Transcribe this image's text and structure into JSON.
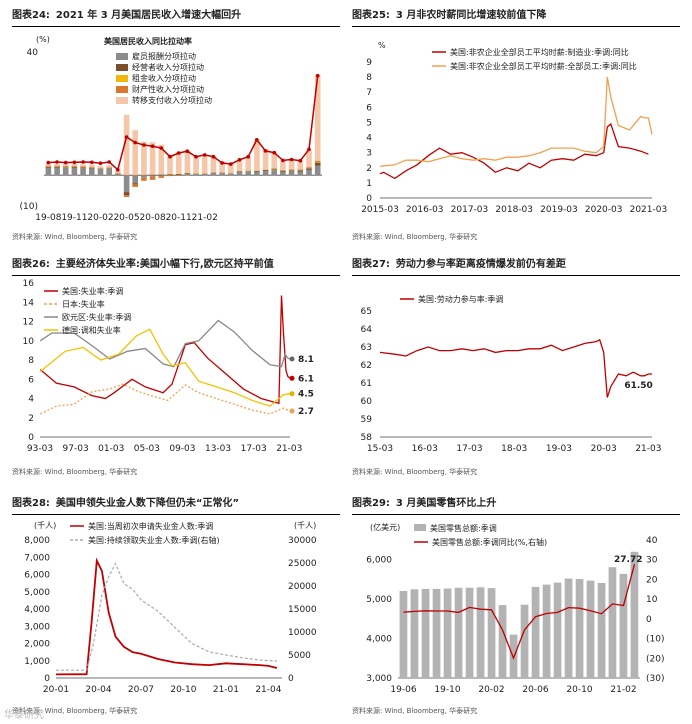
{
  "figures": {
    "f24": {
      "num": "图表24:",
      "title": "2021 年 3 月美国居民收入增速大幅回升",
      "source": "资料来源: Wind, Bloomberg, 华泰研究"
    },
    "f25": {
      "num": "图表25:",
      "title": "3 月非农时薪同比增速较前值下降",
      "source": "资料来源: Wind, Bloomberg, 华泰研究"
    },
    "f26": {
      "num": "图表26:",
      "title": "主要经济体失业率:美国小幅下行,欧元区持平前值",
      "source": "资料来源: Wind, Bloomberg, 华泰研究"
    },
    "f27": {
      "num": "图表27:",
      "title": "劳动力参与率距离疫情爆发前仍有差距",
      "source": "资料来源: Wind, Bloomberg, 华泰研究"
    },
    "f28": {
      "num": "图表28:",
      "title": "美国申领失业金人数下降但仍未“正常化”",
      "source": "资料来源: Wind, Bloomberg, 华泰研究"
    },
    "f29": {
      "num": "图表29:",
      "title": "3 月美国零售环比上升",
      "source": "资料来源: Wind, Bloomberg, 华泰研究"
    }
  },
  "watermark": "华泰研究",
  "chart_data": [
    {
      "id": "f24",
      "type": "bar",
      "title": "美国居民收入同比拉动率",
      "ylabel": "(%)",
      "ylim": [
        -10,
        40
      ],
      "yticks": [
        "40",
        "(10)"
      ],
      "xticks": [
        "19-08",
        "19-11",
        "20-02",
        "20-05",
        "20-08",
        "20-11",
        "21-02"
      ],
      "n": 32,
      "legend": [
        "雇员报酬分项拉动",
        "经营者收入分项拉动",
        "租金收入分项拉动",
        "财产性收入分项拉动",
        "转移支付收入分项拉动"
      ],
      "colors": [
        "#8c8c8c",
        "#7b4f2a",
        "#f2b90c",
        "#d9782d",
        "#f5c6a8"
      ],
      "series": [
        {
          "name": "雇员报酬分项拉动",
          "values": [
            2.5,
            2.5,
            2.4,
            2.5,
            2.3,
            2.2,
            2.0,
            2.2,
            0.6,
            -5.5,
            -2.6,
            -0.8,
            -0.5,
            -0.3,
            0.0,
            0.2,
            0.5,
            0.4,
            0.4,
            0.7,
            0.6,
            0.5,
            1.0,
            1.2,
            1.2,
            1.4,
            1.6,
            1.2,
            1.3,
            1.2,
            1.7,
            3.1
          ]
        },
        {
          "name": "经营者收入分项拉动",
          "values": [
            0.2,
            0.2,
            0.2,
            0.2,
            0.2,
            0.2,
            0.1,
            0.1,
            -0.1,
            -1.0,
            -0.4,
            0.0,
            0.1,
            0.2,
            0.3,
            0.2,
            0.2,
            0.1,
            0.1,
            0.1,
            0.2,
            0.1,
            0.2,
            0.1,
            0.2,
            0.3,
            0.3,
            0.2,
            0.3,
            0.4,
            0.5,
            1.0
          ]
        },
        {
          "name": "租金收入分项拉动",
          "values": [
            0.1,
            0.1,
            0.1,
            0.1,
            0.1,
            0.1,
            0.1,
            0.1,
            0.1,
            0.1,
            0.1,
            0.1,
            0.1,
            0.1,
            0.1,
            0.1,
            0.1,
            0.1,
            0.1,
            0.1,
            0.1,
            0.1,
            0.1,
            0.1,
            0.1,
            0.1,
            0.1,
            0.1,
            0.1,
            0.1,
            0.1,
            0.2
          ]
        },
        {
          "name": "财产性收入分项拉动",
          "values": [
            0.3,
            0.3,
            0.3,
            0.3,
            0.3,
            0.2,
            0.2,
            0.2,
            0.1,
            -0.6,
            -0.8,
            -1.0,
            -1.0,
            -0.6,
            -0.3,
            -0.2,
            -0.1,
            0.0,
            0.0,
            0.1,
            0.1,
            0.1,
            0.1,
            0.1,
            0.1,
            0.1,
            0.2,
            0.2,
            0.2,
            0.2,
            0.3,
            0.4
          ]
        },
        {
          "name": "转移支付收入分项拉动",
          "values": [
            0.6,
            0.6,
            0.6,
            0.6,
            0.6,
            0.7,
            0.6,
            0.6,
            0.8,
            19.5,
            14.5,
            10.8,
            10.5,
            9.6,
            5.9,
            7.0,
            7.3,
            5.5,
            6.0,
            5.4,
            3.3,
            2.9,
            3.6,
            4.5,
            10.1,
            6.5,
            5.5,
            3.1,
            3.2,
            2.8,
            5.6,
            27.8
          ]
        }
      ],
      "total": {
        "name": "同比拉动率合计",
        "values": [
          4.1,
          4.3,
          4.1,
          4.2,
          4.3,
          4.2,
          3.9,
          4.3,
          1.8,
          12.4,
          10.6,
          9.8,
          9.4,
          8.8,
          6.0,
          7.2,
          7.8,
          6.0,
          6.6,
          6.0,
          4.0,
          3.6,
          5.0,
          6.0,
          11.5,
          7.9,
          7.3,
          4.8,
          5.1,
          4.7,
          8.4,
          32.3
        ]
      }
    },
    {
      "id": "f25",
      "type": "line",
      "ylim": [
        0,
        9
      ],
      "ylabel": "%",
      "yticks": [
        "0",
        "1",
        "2",
        "3",
        "4",
        "5",
        "6",
        "7",
        "8",
        "9"
      ],
      "xticks": [
        "2015-03",
        "2016-03",
        "2017-03",
        "2018-03",
        "2019-03",
        "2020-03",
        "2021-03"
      ],
      "x_range": [
        2015.17,
        2021.25
      ],
      "series": [
        {
          "name": "美国:非农企业全部员工平均时薪:制造业:季调:同比",
          "color": "#c00000",
          "x": [
            2015.17,
            2015.25,
            2015.5,
            2015.75,
            2016.0,
            2016.25,
            2016.5,
            2016.75,
            2017.0,
            2017.25,
            2017.5,
            2017.75,
            2018.0,
            2018.25,
            2018.5,
            2018.75,
            2019.0,
            2019.25,
            2019.5,
            2019.75,
            2020.0,
            2020.17,
            2020.25,
            2020.33,
            2020.5,
            2020.75,
            2021.0,
            2021.17
          ],
          "values": [
            1.6,
            1.7,
            1.3,
            1.8,
            2.2,
            2.8,
            3.3,
            2.9,
            3.0,
            2.7,
            2.3,
            1.7,
            2.0,
            1.8,
            2.3,
            2.0,
            2.5,
            2.6,
            2.5,
            2.9,
            2.8,
            3.0,
            4.7,
            4.9,
            3.4,
            3.3,
            3.1,
            2.9
          ]
        },
        {
          "name": "美国:非农企业全部员工平均时薪:全部员工:季调:同比",
          "color": "#f0a050",
          "x": [
            2015.17,
            2015.5,
            2015.75,
            2016.0,
            2016.25,
            2016.5,
            2016.75,
            2017.0,
            2017.25,
            2017.5,
            2017.75,
            2018.0,
            2018.25,
            2018.5,
            2018.75,
            2019.0,
            2019.25,
            2019.5,
            2019.75,
            2020.0,
            2020.17,
            2020.25,
            2020.33,
            2020.5,
            2020.75,
            2021.0,
            2021.08,
            2021.17,
            2021.25
          ],
          "values": [
            2.1,
            2.2,
            2.5,
            2.5,
            2.4,
            2.6,
            2.8,
            2.6,
            2.5,
            2.6,
            2.5,
            2.7,
            2.7,
            2.8,
            3.0,
            3.3,
            3.3,
            3.3,
            3.1,
            3.0,
            3.4,
            8.0,
            6.7,
            4.8,
            4.5,
            5.4,
            5.3,
            5.3,
            4.2
          ]
        }
      ]
    },
    {
      "id": "f26",
      "type": "line",
      "ylim": [
        0,
        16
      ],
      "yticks": [
        "0",
        "2",
        "4",
        "6",
        "8",
        "10",
        "12",
        "14",
        "16"
      ],
      "xticks": [
        "93-03",
        "97-03",
        "01-03",
        "05-03",
        "09-03",
        "13-03",
        "17-03",
        "21-03"
      ],
      "x_range": [
        1993.17,
        2021.25
      ],
      "end_labels": [
        "8.1",
        "6.1",
        "4.5",
        "2.7"
      ],
      "series": [
        {
          "name": "美国:失业率:季调",
          "color": "#c00000",
          "x": [
            1993.2,
            1995,
            1997,
            1999,
            2000.5,
            2001.5,
            2003.5,
            2005,
            2007,
            2008,
            2009.5,
            2010.5,
            2012,
            2014,
            2016,
            2018,
            2019.5,
            2020.0,
            2020.3,
            2020.5,
            2020.8,
            2021.0,
            2021.25
          ],
          "values": [
            7.0,
            5.6,
            5.2,
            4.3,
            4.0,
            4.6,
            6.0,
            5.2,
            4.6,
            5.5,
            9.6,
            9.8,
            8.2,
            6.6,
            5.0,
            4.0,
            3.6,
            3.5,
            14.7,
            11.1,
            6.9,
            6.3,
            6.1
          ]
        },
        {
          "name": "日本:失业率",
          "color": "#f0a050",
          "dashed": true,
          "x": [
            1993.2,
            1995,
            1997,
            1999,
            2001,
            2002.5,
            2004,
            2006,
            2007.5,
            2009.5,
            2011,
            2013,
            2015,
            2017,
            2019,
            2020.5,
            2021.25
          ],
          "values": [
            2.4,
            3.2,
            3.4,
            4.7,
            5.0,
            5.5,
            4.8,
            4.2,
            3.8,
            5.4,
            4.6,
            4.0,
            3.4,
            2.8,
            2.4,
            3.0,
            2.7
          ]
        },
        {
          "name": "欧元区:失业率:季调",
          "color": "#888888",
          "x": [
            1993.2,
            1994.5,
            1997,
            1999,
            2001,
            2003,
            2005,
            2007,
            2008.2,
            2009.5,
            2011,
            2013.2,
            2015,
            2017,
            2019,
            2020.3,
            2020.7,
            2021.0,
            2021.25
          ],
          "values": [
            10.0,
            10.8,
            10.8,
            9.5,
            8.1,
            8.9,
            9.2,
            7.6,
            7.3,
            9.7,
            10.0,
            12.1,
            10.9,
            9.0,
            7.5,
            7.3,
            8.6,
            8.2,
            8.1
          ]
        },
        {
          "name": "德国:调和失业率",
          "color": "#f2c200",
          "x": [
            1993.2,
            1996,
            1998,
            2000,
            2002,
            2004,
            2005.5,
            2007,
            2008,
            2009.5,
            2011,
            2013,
            2015,
            2017,
            2019,
            2020.5,
            2021.25
          ],
          "values": [
            6.8,
            8.9,
            9.3,
            8.0,
            8.6,
            10.5,
            11.2,
            8.6,
            7.4,
            7.7,
            5.8,
            5.2,
            4.6,
            3.8,
            3.2,
            4.4,
            4.5
          ]
        }
      ],
      "end_label_colors": [
        "#666666",
        "#c00000",
        "#e0b000",
        "#f0a050"
      ]
    },
    {
      "id": "f27",
      "type": "line",
      "ylim": [
        58,
        65
      ],
      "yticks": [
        "58",
        "59",
        "60",
        "61",
        "62",
        "63",
        "64",
        "65"
      ],
      "xticks": [
        "15-03",
        "16-03",
        "17-03",
        "18-03",
        "19-03",
        "20-03",
        "21-03"
      ],
      "x_range": [
        2015.17,
        2021.25
      ],
      "end_labels": [
        "61.50"
      ],
      "series": [
        {
          "name": "美国:劳动力参与率:季调",
          "color": "#c00000",
          "x": [
            2015.17,
            2015.5,
            2015.75,
            2016.0,
            2016.25,
            2016.5,
            2016.75,
            2017.0,
            2017.25,
            2017.5,
            2017.75,
            2018.0,
            2018.25,
            2018.5,
            2018.75,
            2019.0,
            2019.25,
            2019.5,
            2019.75,
            2020.0,
            2020.08,
            2020.17,
            2020.25,
            2020.33,
            2020.5,
            2020.67,
            2020.83,
            2021.0,
            2021.08,
            2021.17,
            2021.25
          ],
          "values": [
            62.7,
            62.6,
            62.5,
            62.8,
            63.0,
            62.8,
            62.8,
            62.9,
            62.8,
            62.9,
            62.7,
            62.8,
            62.8,
            62.9,
            62.9,
            63.1,
            62.8,
            63.0,
            63.2,
            63.3,
            63.4,
            62.7,
            60.2,
            60.8,
            61.5,
            61.4,
            61.6,
            61.4,
            61.4,
            61.5,
            61.5
          ]
        }
      ]
    },
    {
      "id": "f28",
      "type": "line",
      "ylabel_left": "(千人)",
      "ylabel_right": "(千人)",
      "ylim_left": [
        0,
        8000
      ],
      "ylim_right": [
        0,
        30000
      ],
      "yticks_left": [
        "0",
        "1,000",
        "2,000",
        "3,000",
        "4,000",
        "5,000",
        "6,000",
        "7,000",
        "8,000"
      ],
      "yticks_right": [
        "0",
        "5000",
        "10000",
        "15000",
        "20000",
        "25000",
        "30000"
      ],
      "xticks": [
        "20-01",
        "20-04",
        "20-07",
        "20-10",
        "21-01",
        "21-04"
      ],
      "x_range": [
        2020.0,
        2021.33
      ],
      "series": [
        {
          "name": "美国:当周初次申请失业金人数:季调",
          "color": "#c00000",
          "axis": "left",
          "x": [
            2020.0,
            2020.18,
            2020.21,
            2020.24,
            2020.27,
            2020.31,
            2020.35,
            2020.4,
            2020.45,
            2020.5,
            2020.6,
            2020.7,
            2020.8,
            2020.9,
            2021.0,
            2021.1,
            2021.2,
            2021.25,
            2021.3
          ],
          "values": [
            210,
            220,
            3300,
            6800,
            6200,
            3800,
            2400,
            1800,
            1500,
            1400,
            1100,
            900,
            800,
            750,
            850,
            800,
            750,
            700,
            580
          ]
        },
        {
          "name": "美国:持续领取失业金人数:季调(右轴)",
          "color": "#aaaaaa",
          "axis": "right",
          "dashed": true,
          "x": [
            2020.0,
            2020.18,
            2020.22,
            2020.27,
            2020.31,
            2020.35,
            2020.4,
            2020.45,
            2020.5,
            2020.6,
            2020.7,
            2020.8,
            2020.9,
            2021.0,
            2021.1,
            2021.2,
            2021.3
          ],
          "values": [
            1700,
            1700,
            7400,
            18000,
            22000,
            24900,
            20500,
            19300,
            17000,
            14500,
            11000,
            7500,
            5700,
            5000,
            4400,
            3900,
            3700
          ]
        }
      ]
    },
    {
      "id": "f29",
      "type": "bar",
      "ylabel": "(亿美元)",
      "ylim_left": [
        3000,
        6500
      ],
      "ylim_right": [
        -30,
        40
      ],
      "yticks_left": [
        "3,000",
        "4,000",
        "5,000",
        "6,000"
      ],
      "yticks_right": [
        "(30)",
        "(20)",
        "(10)",
        "0",
        "10",
        "20",
        "30",
        "40"
      ],
      "xticks": [
        "19-06",
        "19-10",
        "20-02",
        "20-06",
        "20-10",
        "21-02"
      ],
      "end_labels": [
        "27.72"
      ],
      "categories": [
        "19-06",
        "19-07",
        "19-08",
        "19-09",
        "19-10",
        "19-11",
        "19-12",
        "20-01",
        "20-02",
        "20-03",
        "20-04",
        "20-05",
        "20-06",
        "20-07",
        "20-08",
        "20-09",
        "20-10",
        "20-11",
        "20-12",
        "21-01",
        "21-02",
        "21-03"
      ],
      "series": [
        {
          "name": "美国零售总额:季调",
          "color": "#b3b3b3",
          "axis": "left",
          "values": [
            5210,
            5250,
            5260,
            5260,
            5270,
            5290,
            5290,
            5300,
            5280,
            4850,
            4100,
            4860,
            5310,
            5370,
            5420,
            5520,
            5510,
            5470,
            5410,
            5810,
            5640,
            6200
          ]
        },
        {
          "name": "美国零售总额:季调同比(%,右轴)",
          "color": "#c00000",
          "axis": "right",
          "values": [
            3.4,
            3.8,
            4.1,
            4.0,
            4.0,
            3.3,
            5.8,
            4.9,
            4.6,
            -5.6,
            -19.9,
            -5.6,
            1.1,
            2.7,
            3.3,
            5.7,
            5.4,
            4.1,
            2.6,
            7.6,
            6.8,
            27.72
          ]
        }
      ]
    }
  ]
}
